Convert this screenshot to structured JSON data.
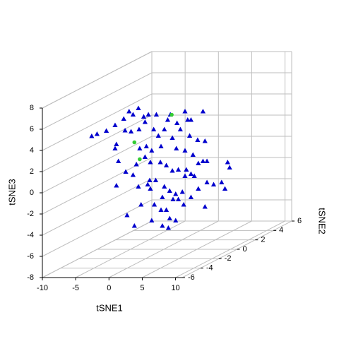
{
  "chart_data": {
    "type": "scatter3d",
    "xlabel": "tSNE1",
    "ylabel": "tSNE2",
    "zlabel": "tSNE3",
    "xlim": [
      -10,
      11
    ],
    "ylim": [
      -6,
      6
    ],
    "zlim": [
      -8,
      8
    ],
    "xticks": [
      -10,
      -5,
      0,
      5,
      10
    ],
    "yticks": [
      -6,
      -4,
      -2,
      0,
      2,
      4,
      6
    ],
    "zticks": [
      -8,
      -6,
      -4,
      -2,
      0,
      2,
      4,
      6,
      8
    ],
    "grid": true,
    "series": [
      {
        "color": "#0000cd",
        "marker": "triangle",
        "x": [
          -6.7,
          -5.9,
          -4.5,
          -7.3,
          -6.0,
          -5.2,
          -4.6,
          -3.8,
          -3.0,
          -2.3,
          -1.1,
          1.0,
          3.2,
          5.9,
          -5.8,
          -4.9,
          -7.1,
          -7.3,
          -3.7,
          -2.8,
          -1.5,
          -0.8,
          0.1,
          2.5,
          3.6,
          4.1,
          2.0,
          0.6,
          1.3,
          3.9,
          5.1,
          6.2,
          -3.6,
          -2.6,
          -1.8,
          -0.4,
          1.9,
          3.2,
          4.4,
          5.9,
          6.5,
          9.6,
          9.9,
          -2.8,
          -2.0,
          -0.5,
          0.4,
          1.3,
          2.2,
          3.4,
          4.1,
          5.2,
          -6.8,
          -5.7,
          -4.6,
          -4.1,
          -2.1,
          -1.2,
          -2.4,
          0.1,
          0.9,
          1.8,
          2.8,
          3.2,
          4.6,
          6.5,
          7.5,
          8.7,
          9.2,
          -7.1,
          -3.8,
          -2.0,
          -0.2,
          1.4,
          2.2,
          3.0,
          4.1,
          6.2,
          -1.4,
          -1.8,
          -0.4,
          0.4,
          0.9,
          1.8,
          0.7,
          -5.5,
          -4.4,
          -3.4,
          -0.2,
          5.2
        ],
        "y": [
          -3,
          -3,
          -3,
          0,
          0,
          0,
          0,
          0,
          0,
          0,
          0,
          0,
          0,
          0,
          0,
          0,
          0,
          0,
          0,
          0,
          0,
          0,
          0,
          0,
          0,
          0,
          0,
          0,
          0,
          0,
          0,
          0,
          0,
          0,
          0,
          0,
          0,
          0,
          0,
          0,
          0,
          0,
          0,
          0,
          0,
          0,
          0,
          0,
          0,
          0,
          0,
          0,
          0,
          0,
          0,
          0,
          0,
          0,
          0,
          0,
          0,
          0,
          0,
          0,
          0,
          0,
          0,
          0,
          0,
          0,
          0,
          0,
          0,
          0,
          0,
          0,
          0,
          0,
          0,
          0,
          0,
          0,
          0,
          0,
          0,
          0,
          0,
          0,
          0,
          0
        ],
        "z": [
          4.0,
          4.2,
          4.5,
          3.7,
          4.3,
          5.0,
          4.7,
          5.3,
          4.5,
          4.7,
          4.7,
          4.7,
          5.0,
          5.0,
          3.2,
          3.1,
          1.9,
          1.5,
          3.3,
          4.0,
          3.3,
          2.7,
          3.3,
          3.3,
          4.2,
          4.2,
          3.9,
          4.2,
          2.5,
          2.7,
          2.3,
          2.2,
          1.5,
          1.7,
          1.3,
          1.7,
          1.5,
          1.3,
          0.9,
          0.3,
          0.3,
          0.2,
          -0.3,
          0.7,
          0.2,
          0.2,
          -0.1,
          -0.6,
          -0.5,
          -0.5,
          -0.9,
          0.1,
          0.3,
          -0.7,
          -1.0,
          0.0,
          -1.5,
          -1.5,
          -1.9,
          -2.1,
          -2.5,
          -2.8,
          -2.6,
          -1.1,
          -1.1,
          -1.7,
          -1.9,
          -1.7,
          -2.3,
          -2.0,
          -2.1,
          -2.3,
          -3.1,
          -3.3,
          -3.3,
          -3.8,
          -3.1,
          -4.0,
          -3.8,
          -5.3,
          -4.3,
          -4.3,
          -5.1,
          -5.3,
          -6.0,
          -4.8,
          -5.8,
          -3.8,
          -5.8,
          -2.3
        ]
      },
      {
        "color": "#33cc33",
        "marker": "circle",
        "x": [
          -4.4,
          -3.6,
          1.2
        ],
        "y": [
          0,
          0,
          0
        ],
        "z": [
          2.1,
          0.5,
          4.7
        ]
      }
    ]
  }
}
